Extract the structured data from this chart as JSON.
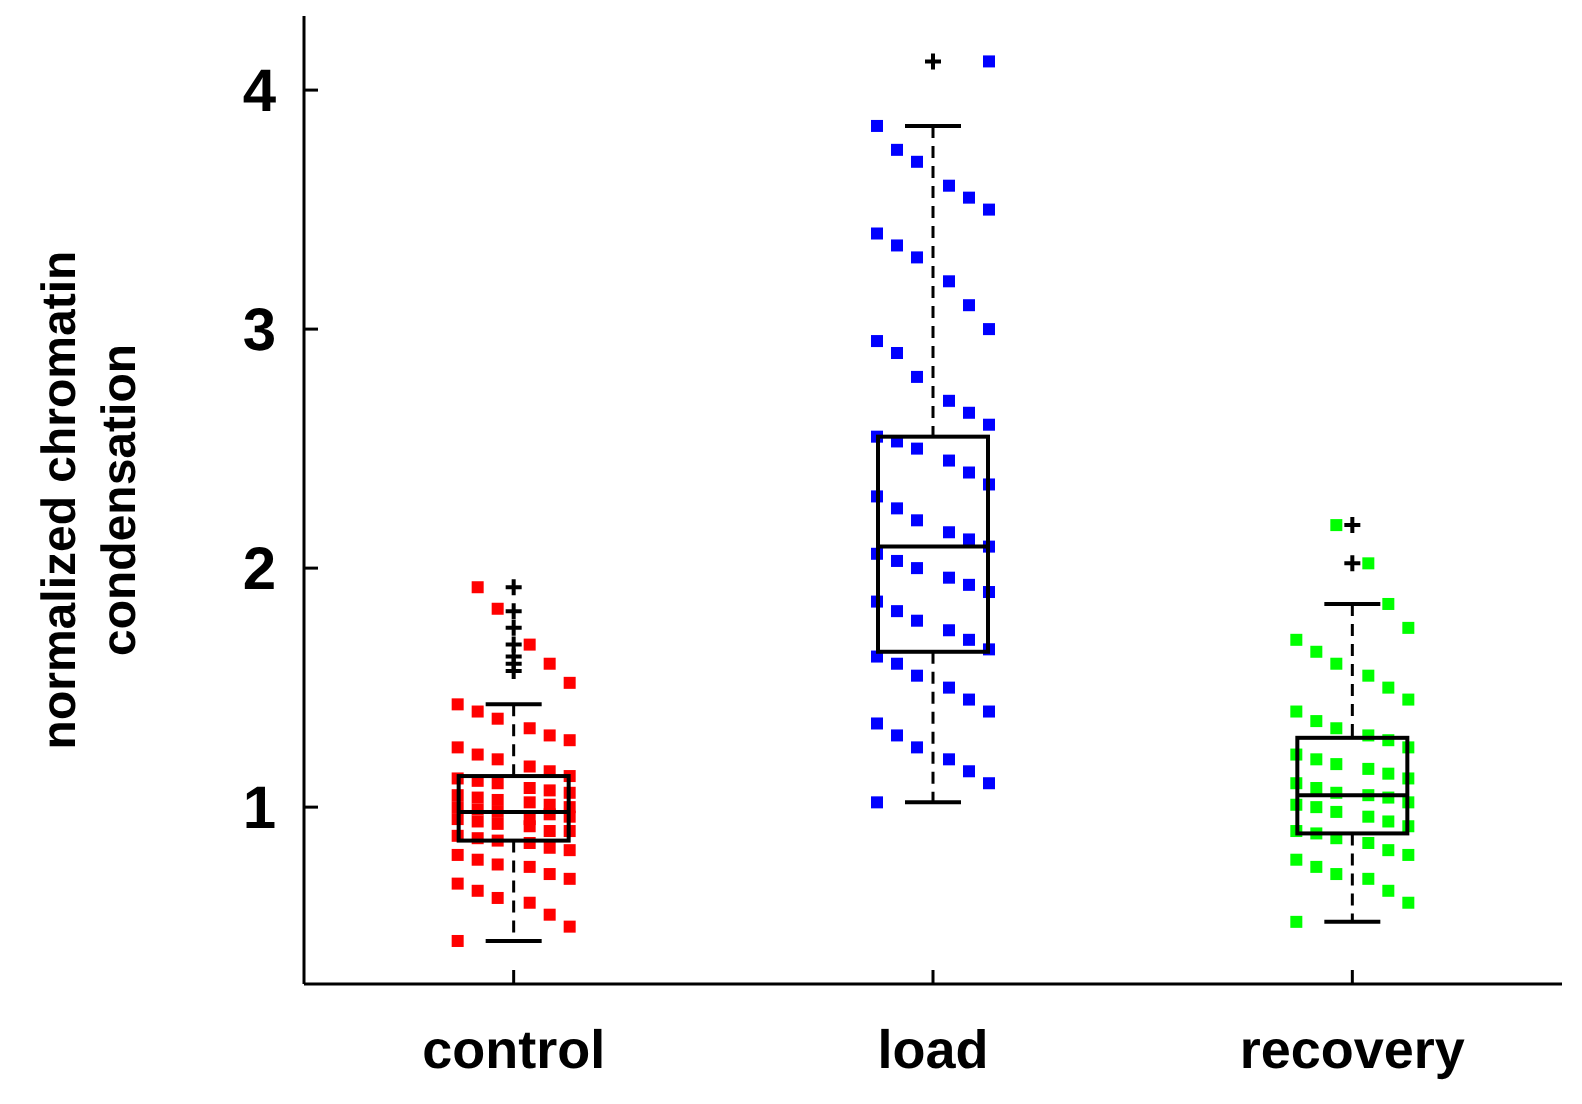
{
  "chart_data": {
    "type": "box",
    "ylabel": "normalized chromatin condensation",
    "categories": [
      "control",
      "load",
      "recovery"
    ],
    "ylim": [
      0.26,
      4.31
    ],
    "yticks": [
      1,
      2,
      3,
      4
    ],
    "marker": "square",
    "color": "#000000",
    "boxes": [
      {
        "low": 0.44,
        "q1": 0.86,
        "median": 0.98,
        "q3": 1.13,
        "high": 1.43,
        "outliers": [
          1.57,
          1.6,
          1.63,
          1.68,
          1.75,
          1.82,
          1.92
        ]
      },
      {
        "low": 1.02,
        "q1": 1.65,
        "median": 2.09,
        "q3": 2.55,
        "high": 3.85,
        "outliers": [
          4.12
        ]
      },
      {
        "low": 0.52,
        "q1": 0.89,
        "median": 1.05,
        "q3": 1.29,
        "high": 1.85,
        "outliers": [
          2.02,
          2.18
        ]
      }
    ],
    "series": [
      {
        "type": "scatter",
        "color": "#ff0000",
        "x": [
          "control",
          "control",
          "control",
          "control",
          "control",
          "control",
          "control",
          "control",
          "control",
          "control",
          "control",
          "control",
          "control",
          "control",
          "control",
          "control",
          "control",
          "control",
          "control",
          "control",
          "control",
          "control",
          "control",
          "control",
          "control",
          "control",
          "control",
          "control",
          "control",
          "control",
          "control",
          "control",
          "control",
          "control",
          "control",
          "control",
          "control",
          "control",
          "control",
          "control",
          "control",
          "control",
          "control",
          "control",
          "control",
          "control",
          "control",
          "control",
          "control",
          "control",
          "control",
          "control",
          "control",
          "control",
          "control",
          "control",
          "control",
          "control",
          "control",
          "control"
        ],
        "values": [
          0.44,
          0.5,
          0.55,
          0.6,
          0.62,
          0.65,
          0.68,
          0.7,
          0.72,
          0.75,
          0.76,
          0.78,
          0.8,
          0.82,
          0.83,
          0.85,
          0.86,
          0.87,
          0.88,
          0.9,
          0.9,
          0.92,
          0.93,
          0.94,
          0.95,
          0.96,
          0.97,
          0.95,
          0.98,
          0.99,
          1.0,
          1.0,
          1.01,
          1.02,
          1.03,
          1.04,
          1.05,
          1.06,
          1.07,
          1.08,
          1.1,
          1.11,
          1.12,
          1.13,
          1.15,
          1.17,
          1.2,
          1.22,
          1.25,
          1.28,
          1.3,
          1.33,
          1.37,
          1.4,
          1.43,
          1.52,
          1.6,
          1.68,
          1.83,
          1.92
        ]
      },
      {
        "type": "scatter",
        "color": "#0000ff",
        "x": [
          "load",
          "load",
          "load",
          "load",
          "load",
          "load",
          "load",
          "load",
          "load",
          "load",
          "load",
          "load",
          "load",
          "load",
          "load",
          "load",
          "load",
          "load",
          "load",
          "load",
          "load",
          "load",
          "load",
          "load",
          "load",
          "load",
          "load",
          "load",
          "load",
          "load",
          "load",
          "load",
          "load",
          "load",
          "load",
          "load",
          "load",
          "load",
          "load",
          "load",
          "load",
          "load",
          "load",
          "load",
          "load",
          "load",
          "load",
          "load",
          "load",
          "load",
          "load",
          "load",
          "load",
          "load",
          "load",
          "load"
        ],
        "values": [
          1.02,
          1.1,
          1.15,
          1.2,
          1.25,
          1.3,
          1.35,
          1.4,
          1.45,
          1.5,
          1.55,
          1.6,
          1.63,
          1.66,
          1.7,
          1.74,
          1.78,
          1.82,
          1.86,
          1.9,
          1.93,
          1.96,
          2.0,
          2.03,
          2.06,
          2.09,
          2.12,
          2.15,
          2.2,
          2.25,
          2.3,
          2.35,
          2.4,
          2.45,
          2.5,
          2.53,
          2.55,
          2.6,
          2.65,
          2.7,
          2.8,
          2.9,
          2.95,
          3.0,
          3.1,
          3.2,
          3.3,
          3.35,
          3.4,
          3.5,
          3.55,
          3.6,
          3.7,
          3.75,
          3.85,
          4.12
        ]
      },
      {
        "type": "scatter",
        "color": "#00ff00",
        "x": [
          "recovery",
          "recovery",
          "recovery",
          "recovery",
          "recovery",
          "recovery",
          "recovery",
          "recovery",
          "recovery",
          "recovery",
          "recovery",
          "recovery",
          "recovery",
          "recovery",
          "recovery",
          "recovery",
          "recovery",
          "recovery",
          "recovery",
          "recovery",
          "recovery",
          "recovery",
          "recovery",
          "recovery",
          "recovery",
          "recovery",
          "recovery",
          "recovery",
          "recovery",
          "recovery",
          "recovery",
          "recovery",
          "recovery",
          "recovery",
          "recovery",
          "recovery",
          "recovery",
          "recovery",
          "recovery",
          "recovery",
          "recovery",
          "recovery",
          "recovery",
          "recovery",
          "recovery",
          "recovery",
          "recovery"
        ],
        "values": [
          0.52,
          0.6,
          0.65,
          0.7,
          0.72,
          0.75,
          0.78,
          0.8,
          0.82,
          0.85,
          0.87,
          0.89,
          0.9,
          0.92,
          0.94,
          0.96,
          0.98,
          1.0,
          1.01,
          1.02,
          1.04,
          1.05,
          1.06,
          1.08,
          1.1,
          1.12,
          1.14,
          1.16,
          1.18,
          1.2,
          1.22,
          1.25,
          1.28,
          1.3,
          1.33,
          1.36,
          1.4,
          1.45,
          1.5,
          1.55,
          1.6,
          1.65,
          1.7,
          1.75,
          1.85,
          2.02,
          2.18
        ]
      }
    ]
  }
}
